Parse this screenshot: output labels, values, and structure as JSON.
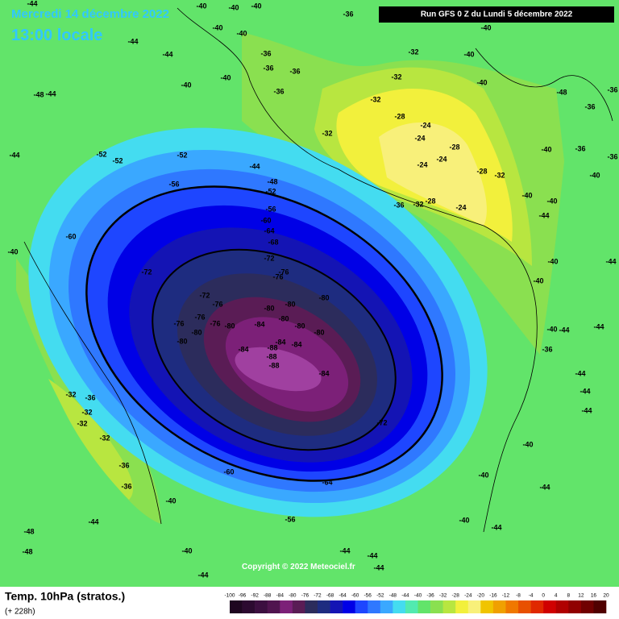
{
  "header": {
    "date": "Mercredi 14 décembre 2022",
    "time": "13:00 locale",
    "run": "Run GFS 0 Z du Lundi 5 décembre 2022"
  },
  "copyright": "Copyright © 2022 Meteociel.fr",
  "footer": {
    "title": "Temp. 10hPa (stratos.)",
    "lead": "(+ 228h)"
  },
  "legend": {
    "ticks": [
      -100,
      -96,
      -92,
      -88,
      -84,
      -80,
      -76,
      -72,
      -68,
      -64,
      -60,
      -56,
      -52,
      -48,
      -44,
      -40,
      -36,
      -32,
      -28,
      -24,
      -20,
      -16,
      -12,
      -8,
      -4,
      0,
      4,
      8,
      12,
      16,
      20
    ],
    "colors": [
      "#1e0620",
      "#2c0a30",
      "#3c0f40",
      "#50144f",
      "#7c2078",
      "#5a1c55",
      "#2c2c5c",
      "#1e2c80",
      "#1414b4",
      "#0000e6",
      "#1e46ff",
      "#2f78ff",
      "#3aa8ff",
      "#44dcf0",
      "#52eab0",
      "#62e46a",
      "#8ae050",
      "#b8e640",
      "#f2f03c",
      "#f8f07a",
      "#f0c400",
      "#f0a000",
      "#f07800",
      "#e85000",
      "#e02800",
      "#d00000",
      "#b00000",
      "#900000",
      "#700000",
      "#500000"
    ]
  },
  "contour_labels": [
    -44,
    -40,
    -40,
    -40,
    -36,
    -40,
    -40,
    -40,
    -44,
    -44,
    -36,
    -36,
    -32,
    -40,
    -32,
    -40,
    -40,
    -40,
    -36,
    -36,
    -48,
    -44,
    -32,
    -28,
    -32,
    -24,
    -24,
    -28,
    -24,
    -24,
    -28,
    -32,
    -28,
    -24,
    -36,
    -32,
    -40,
    -40,
    -44,
    -36,
    -40,
    -44,
    -52,
    -52,
    -52,
    -44,
    -56,
    -48,
    -52,
    -56,
    -60,
    -64,
    -68,
    -60,
    -40,
    -72,
    -72,
    -76,
    -76,
    -72,
    -76,
    -80,
    -80,
    -80,
    -76,
    -76,
    -76,
    -80,
    -84,
    -80,
    -80,
    -80,
    -80,
    -80,
    -84,
    -84,
    -88,
    -88,
    -84,
    -88,
    -84,
    -72,
    -60,
    -64,
    -56,
    -32,
    -36,
    -32,
    -32,
    -32,
    -36,
    -36,
    -40,
    -44,
    -48,
    -48,
    -40,
    -44,
    -44,
    -44,
    -44,
    -40,
    -44,
    -40,
    -44,
    -40,
    -44,
    -44,
    -44,
    -40,
    -40,
    -40,
    -44,
    -36,
    -36,
    -40,
    -48,
    -36,
    -44,
    -44,
    -36
  ]
}
